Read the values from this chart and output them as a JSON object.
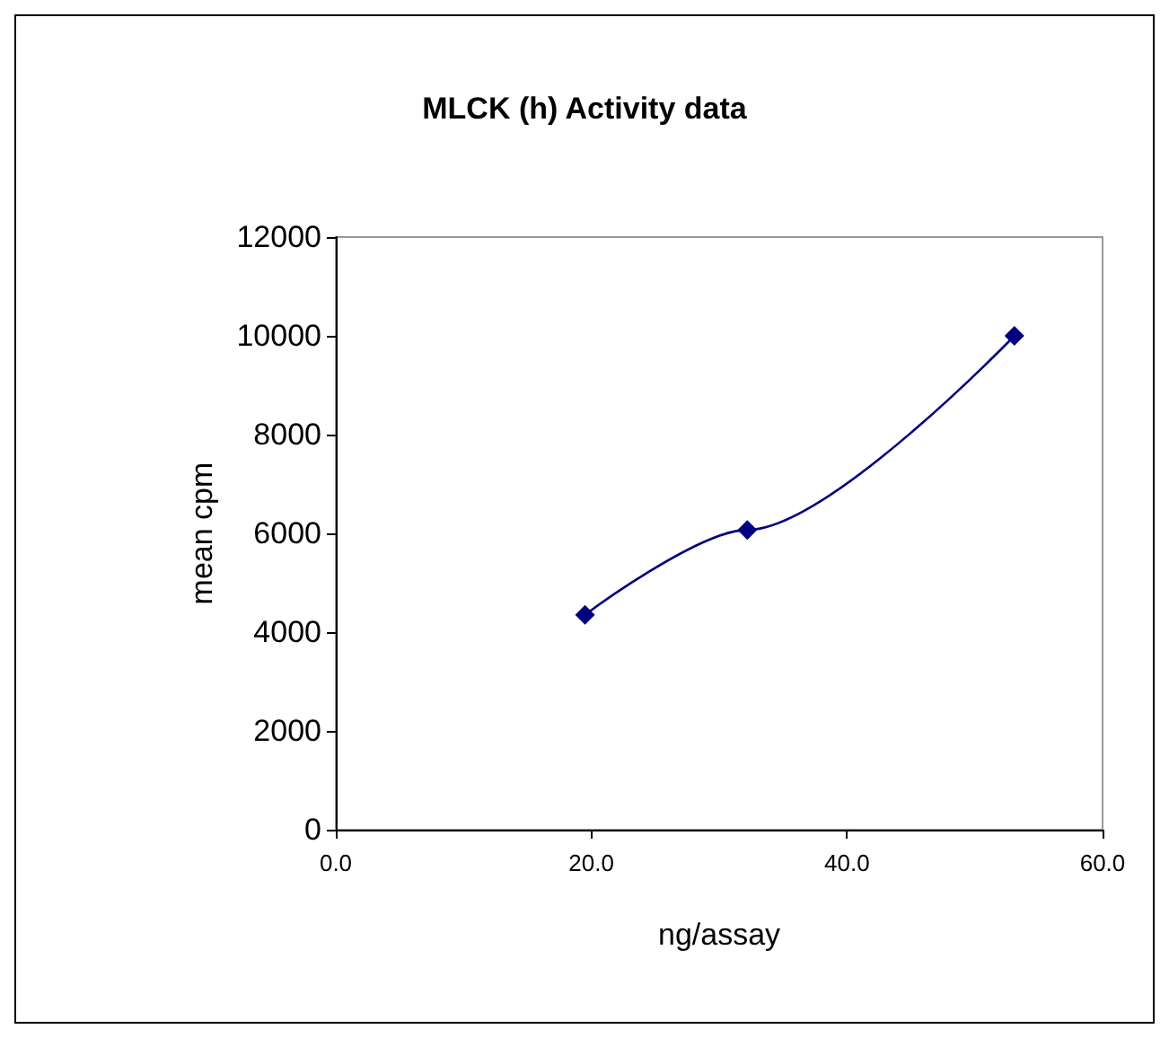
{
  "chart_data": {
    "type": "line",
    "title": "MLCK (h) Activity data",
    "xlabel": "ng/assay",
    "ylabel": "mean cpm",
    "x": [
      19.5,
      32.2,
      53.1
    ],
    "series": [
      {
        "color": "#000080",
        "values": [
          4350,
          6070,
          10000
        ]
      }
    ],
    "xlim": [
      0,
      60
    ],
    "xticks": [
      {
        "value": 0,
        "label": "0.0"
      },
      {
        "value": 20,
        "label": "20.0"
      },
      {
        "value": 40,
        "label": "40.0"
      },
      {
        "value": 60,
        "label": "60.0"
      }
    ],
    "ylim": [
      0,
      12000
    ],
    "yticks": [
      0,
      2000,
      4000,
      6000,
      8000,
      10000,
      12000
    ],
    "grid": false,
    "marker": "diamond",
    "line_style": "solid"
  }
}
